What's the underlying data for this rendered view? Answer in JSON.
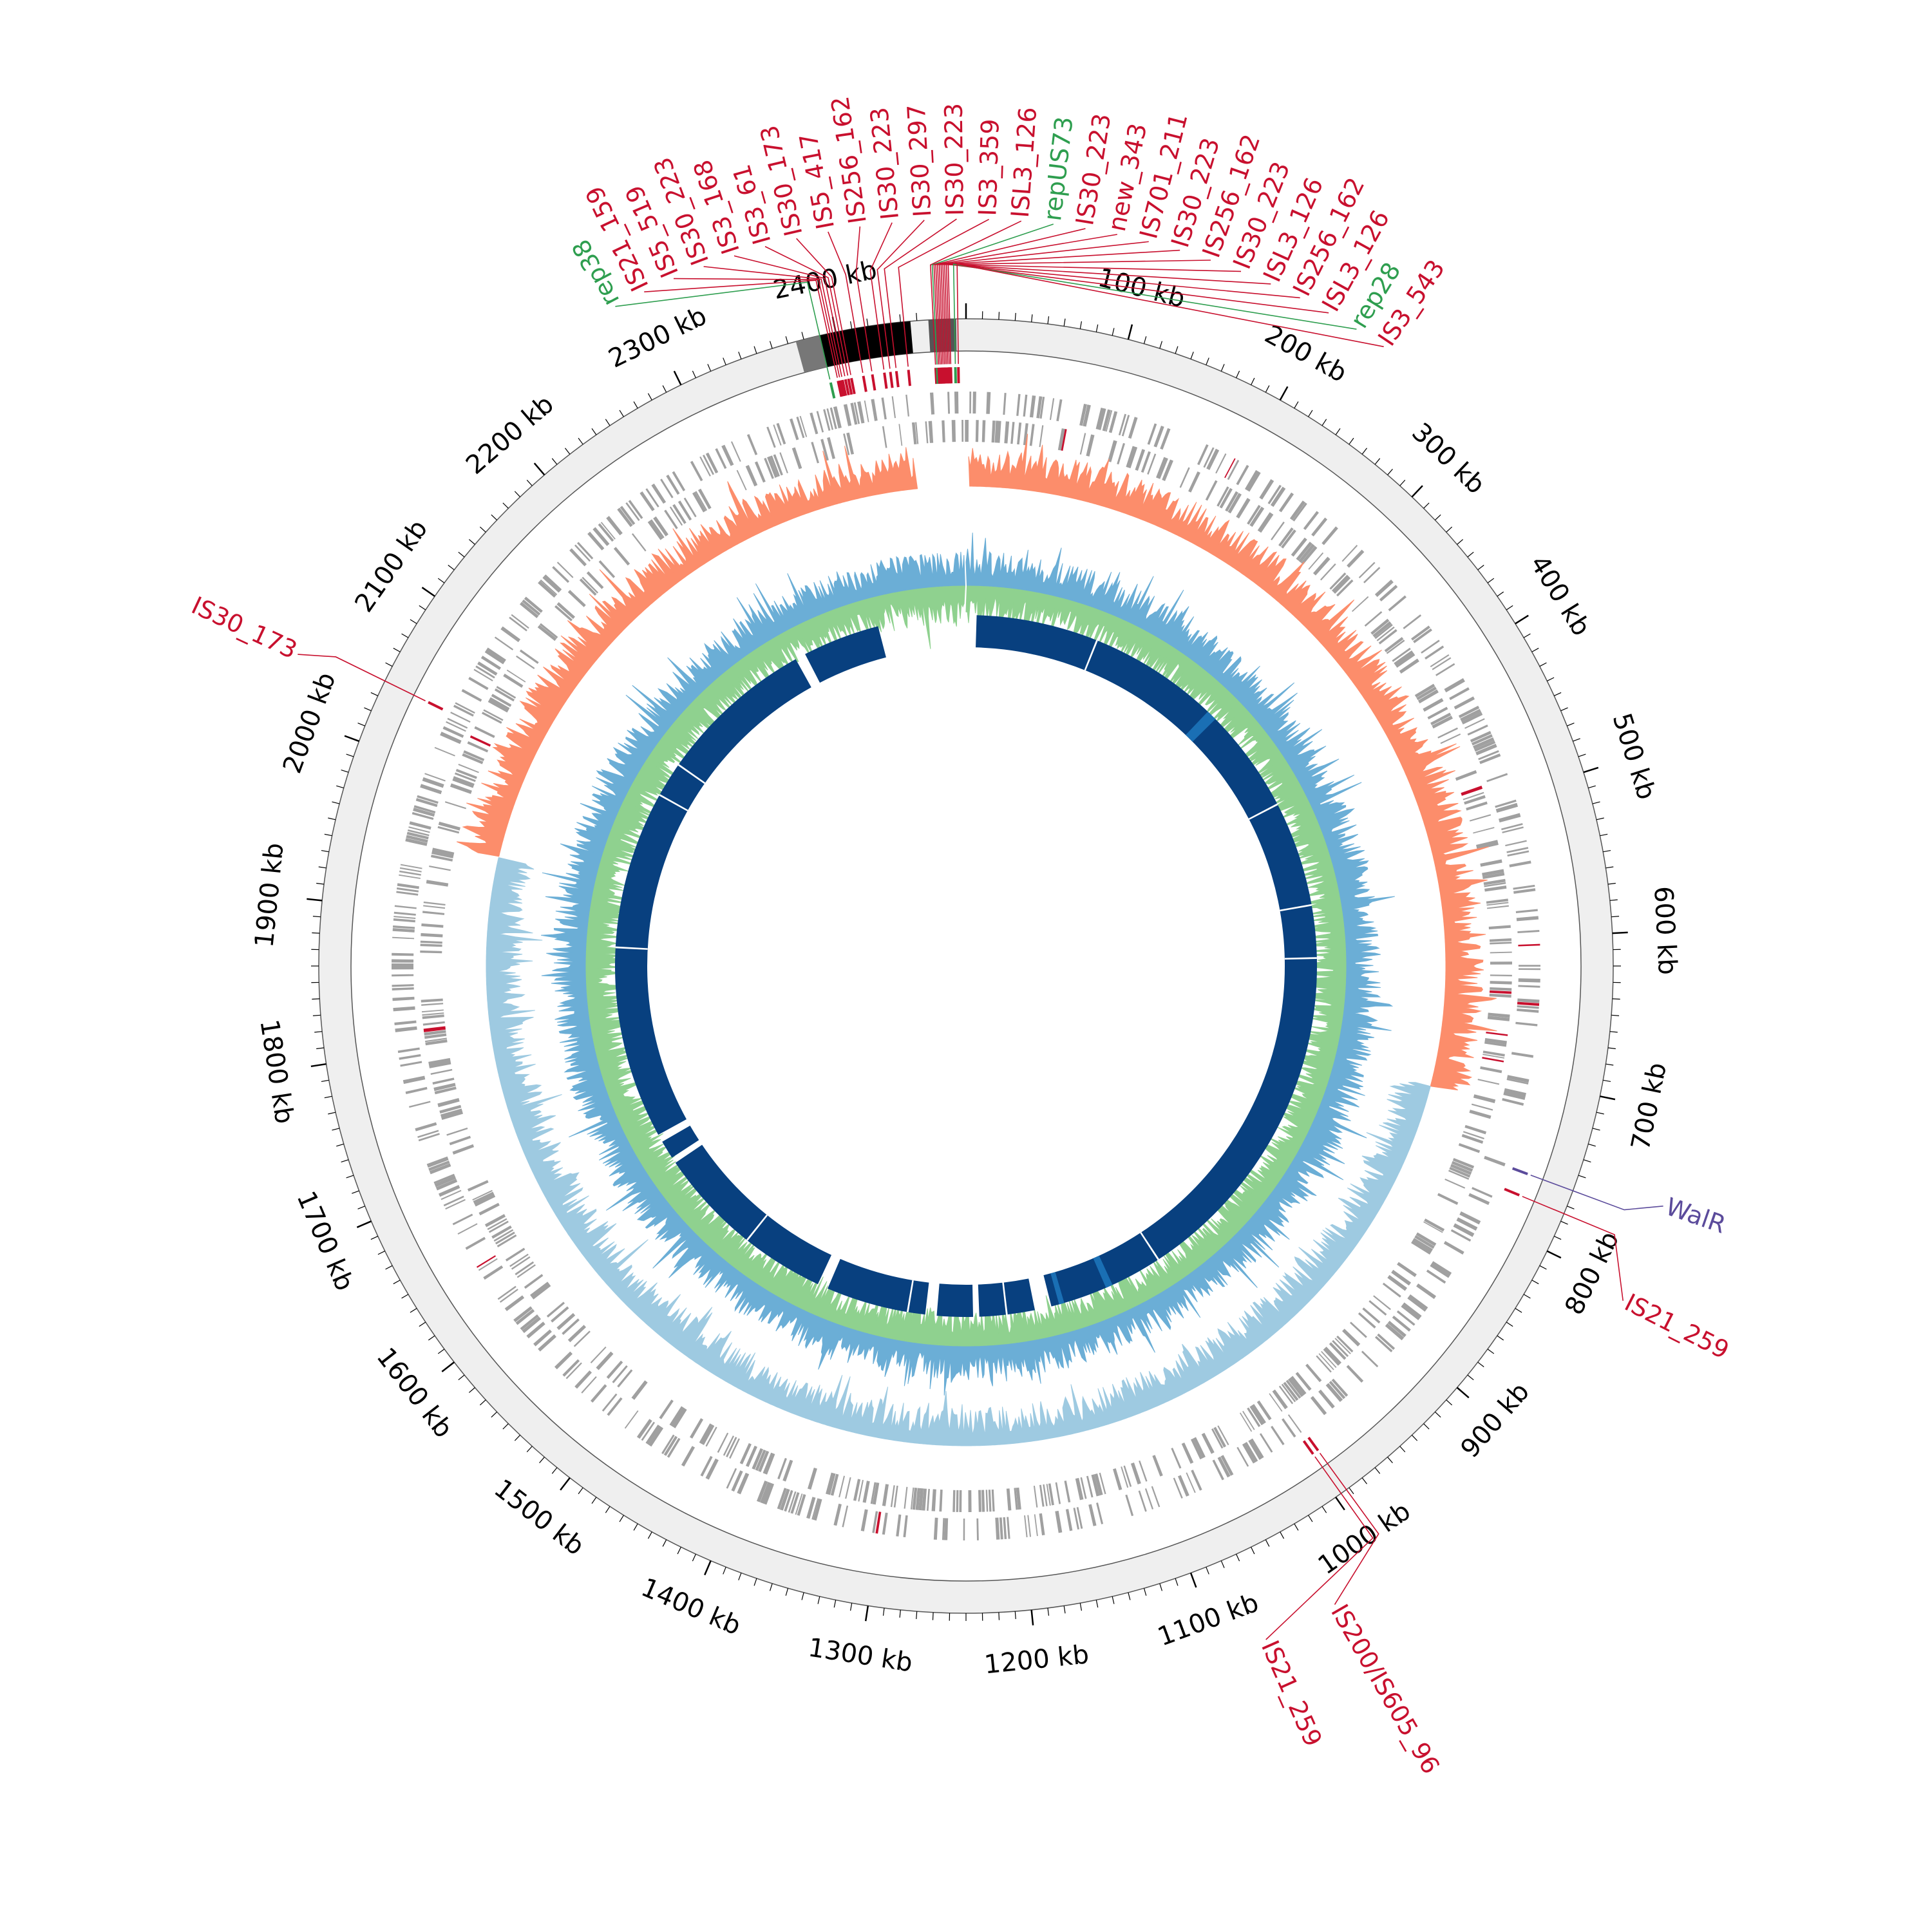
{
  "map": {
    "genome_length_kb": 2480,
    "tick_labels": [
      "100 kb",
      "200 kb",
      "300 kb",
      "400 kb",
      "500 kb",
      "600 kb",
      "700 kb",
      "800 kb",
      "900 kb",
      "1000 kb",
      "1100 kb",
      "1200 kb",
      "1300 kb",
      "1400 kb",
      "1500 kb",
      "1600 kb",
      "1700 kb",
      "1800 kb",
      "1900 kb",
      "2000 kb",
      "2100 kb",
      "2200 kb",
      "2300 kb",
      "2400 kb"
    ],
    "colors": {
      "is_element": "#c8102e",
      "rep_gene": "#2e9e4f",
      "regulator": "#5b4b9b",
      "ideogram_ring": "#efefef",
      "gene_track": "#a0a0a0",
      "gc_skew_positive": "#fc8d6b",
      "gc_skew_negative": "#9ecae1",
      "gc_content_high": "#6baed6",
      "gc_content_low": "#8fd18f",
      "blast_identity": "#08407f",
      "blast_identity_light": "#1a6fb4"
    },
    "features": [
      {
        "label": "IS21_159",
        "kind": "is",
        "kb": 2395.0
      },
      {
        "label": "IS5_519",
        "kind": "is",
        "kb": 2396.5
      },
      {
        "label": "IS30_223",
        "kind": "is",
        "kb": 2398.0
      },
      {
        "label": "IS3_168",
        "kind": "is",
        "kb": 2400.0
      },
      {
        "label": "IS3_61",
        "kind": "is",
        "kb": 2402.0
      },
      {
        "label": "IS30_173",
        "kind": "is",
        "kb": 2404.0
      },
      {
        "label": "IS5_417",
        "kind": "is",
        "kb": 2412.0
      },
      {
        "label": "IS256_162",
        "kind": "is",
        "kb": 2418.0
      },
      {
        "label": "IS30_223",
        "kind": "is",
        "kb": 2426.0
      },
      {
        "label": "IS30_297",
        "kind": "is",
        "kb": 2430.0
      },
      {
        "label": "IS30_223",
        "kind": "is",
        "kb": 2434.0
      },
      {
        "label": "IS3_359",
        "kind": "is",
        "kb": 2442.0
      },
      {
        "label": "ISL3_126",
        "kind": "is",
        "kb": 2460.0
      },
      {
        "label": "repUS73",
        "kind": "rep",
        "kb": 2461.0
      },
      {
        "label": "IS30_223",
        "kind": "is",
        "kb": 2462.0
      },
      {
        "label": "new_343",
        "kind": "is",
        "kb": 2463.0
      },
      {
        "label": "IS701_211",
        "kind": "is",
        "kb": 2464.0
      },
      {
        "label": "IS30_223",
        "kind": "is",
        "kb": 2465.0
      },
      {
        "label": "IS256_162",
        "kind": "is",
        "kb": 2466.0
      },
      {
        "label": "IS30_223",
        "kind": "is",
        "kb": 2467.0
      },
      {
        "label": "ISL3_126",
        "kind": "is",
        "kb": 2468.0
      },
      {
        "label": "IS256_162",
        "kind": "is",
        "kb": 2469.0
      },
      {
        "label": "ISL3_126",
        "kind": "is",
        "kb": 2470.0
      },
      {
        "label": "rep28",
        "kind": "rep",
        "kb": 2473.0
      },
      {
        "label": "IS3_543",
        "kind": "is",
        "kb": 2475.0
      },
      {
        "label": "rep38",
        "kind": "rep",
        "kb": 2390.0
      },
      {
        "label": "IS30_173",
        "kind": "is",
        "kb": 2040.0
      },
      {
        "label": "WalR",
        "kind": "reg",
        "kb": 760.0
      },
      {
        "label": "IS21_259",
        "kind": "is",
        "kb": 775.0
      },
      {
        "label": "IS200/IS605_96",
        "kind": "is",
        "kb": 992.0
      },
      {
        "label": "IS21_259",
        "kind": "is",
        "kb": 996.0
      }
    ]
  }
}
